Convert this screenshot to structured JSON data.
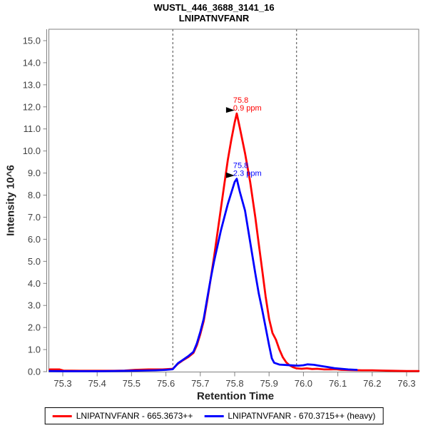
{
  "window": {
    "background": "#ffffff"
  },
  "chart_data": {
    "type": "line",
    "title": "WUSTL_446_3688_3141_16",
    "subtitle": "LNIPATNVFANR",
    "xlabel": "Retention Time",
    "ylabel": "Intensity 10^6",
    "xlim": [
      75.258,
      76.335
    ],
    "ylim": [
      0,
      15.52
    ],
    "x_ticks": [
      75.3,
      75.4,
      75.5,
      75.6,
      75.7,
      75.8,
      75.9,
      76.0,
      76.1,
      76.2,
      76.3
    ],
    "y_ticks": [
      0.0,
      1.0,
      2.0,
      3.0,
      4.0,
      5.0,
      6.0,
      7.0,
      8.0,
      9.0,
      10.0,
      11.0,
      12.0,
      13.0,
      14.0,
      15.0
    ],
    "grid": false,
    "legend_position": "bottom-center",
    "frame_color": "#808080",
    "tick_label_color": "#404040",
    "boundary_color": "#444444",
    "peak_boundaries": [
      75.62,
      75.98
    ],
    "series": [
      {
        "name": "LNIPATNVFANR - 665.3673++",
        "color": "#ff0000",
        "points": [
          [
            75.262,
            0.1
          ],
          [
            75.29,
            0.1
          ],
          [
            75.302,
            0.05
          ],
          [
            75.35,
            0.04
          ],
          [
            75.4,
            0.04
          ],
          [
            75.45,
            0.04
          ],
          [
            75.48,
            0.05
          ],
          [
            75.51,
            0.08
          ],
          [
            75.55,
            0.1
          ],
          [
            75.59,
            0.1
          ],
          [
            75.62,
            0.13
          ],
          [
            75.635,
            0.36
          ],
          [
            75.65,
            0.52
          ],
          [
            75.665,
            0.66
          ],
          [
            75.68,
            0.85
          ],
          [
            75.69,
            1.2
          ],
          [
            75.7,
            1.7
          ],
          [
            75.71,
            2.3
          ],
          [
            75.72,
            3.2
          ],
          [
            75.73,
            4.2
          ],
          [
            75.74,
            5.2
          ],
          [
            75.75,
            6.3
          ],
          [
            75.76,
            7.4
          ],
          [
            75.77,
            8.5
          ],
          [
            75.78,
            9.6
          ],
          [
            75.79,
            10.5
          ],
          [
            75.8,
            11.3
          ],
          [
            75.806,
            11.7
          ],
          [
            75.815,
            11.05
          ],
          [
            75.83,
            9.9
          ],
          [
            75.845,
            8.6
          ],
          [
            75.86,
            7.0
          ],
          [
            75.87,
            5.8
          ],
          [
            75.88,
            4.6
          ],
          [
            75.89,
            3.4
          ],
          [
            75.9,
            2.4
          ],
          [
            75.91,
            1.75
          ],
          [
            75.92,
            1.45
          ],
          [
            75.93,
            1.0
          ],
          [
            75.94,
            0.65
          ],
          [
            75.95,
            0.42
          ],
          [
            75.96,
            0.28
          ],
          [
            75.97,
            0.2
          ],
          [
            75.98,
            0.15
          ],
          [
            75.995,
            0.13
          ],
          [
            76.01,
            0.15
          ],
          [
            76.025,
            0.12
          ],
          [
            76.04,
            0.13
          ],
          [
            76.06,
            0.1
          ],
          [
            76.08,
            0.1
          ],
          [
            76.095,
            0.11
          ],
          [
            76.11,
            0.08
          ],
          [
            76.14,
            0.07
          ],
          [
            76.17,
            0.06
          ],
          [
            76.2,
            0.06
          ],
          [
            76.23,
            0.05
          ],
          [
            76.26,
            0.04
          ],
          [
            76.3,
            0.03
          ],
          [
            76.335,
            0.03
          ]
        ],
        "annotation": {
          "lines": [
            "75.8",
            "0.9 ppm"
          ],
          "x": 75.806,
          "y": 11.7
        }
      },
      {
        "name": "LNIPATNVFANR - 670.3715++ (heavy)",
        "color": "#0000ff",
        "points": [
          [
            75.262,
            0.03
          ],
          [
            75.31,
            0.02
          ],
          [
            75.36,
            0.02
          ],
          [
            75.41,
            0.02
          ],
          [
            75.45,
            0.03
          ],
          [
            75.49,
            0.04
          ],
          [
            75.53,
            0.05
          ],
          [
            75.57,
            0.06
          ],
          [
            75.6,
            0.08
          ],
          [
            75.62,
            0.11
          ],
          [
            75.635,
            0.38
          ],
          [
            75.65,
            0.54
          ],
          [
            75.665,
            0.7
          ],
          [
            75.68,
            0.9
          ],
          [
            75.69,
            1.28
          ],
          [
            75.7,
            1.8
          ],
          [
            75.71,
            2.4
          ],
          [
            75.72,
            3.3
          ],
          [
            75.73,
            4.2
          ],
          [
            75.74,
            5.0
          ],
          [
            75.75,
            5.7
          ],
          [
            75.76,
            6.4
          ],
          [
            75.77,
            7.0
          ],
          [
            75.78,
            7.6
          ],
          [
            75.79,
            8.1
          ],
          [
            75.8,
            8.6
          ],
          [
            75.806,
            8.74
          ],
          [
            75.815,
            8.15
          ],
          [
            75.83,
            7.3
          ],
          [
            75.84,
            6.35
          ],
          [
            75.85,
            5.4
          ],
          [
            75.86,
            4.45
          ],
          [
            75.87,
            3.55
          ],
          [
            75.88,
            2.8
          ],
          [
            75.89,
            2.0
          ],
          [
            75.9,
            1.2
          ],
          [
            75.908,
            0.6
          ],
          [
            75.915,
            0.4
          ],
          [
            75.93,
            0.32
          ],
          [
            75.95,
            0.3
          ],
          [
            75.97,
            0.28
          ],
          [
            75.985,
            0.27
          ],
          [
            76.0,
            0.29
          ],
          [
            76.012,
            0.33
          ],
          [
            76.03,
            0.31
          ],
          [
            76.05,
            0.26
          ],
          [
            76.07,
            0.21
          ],
          [
            76.09,
            0.16
          ],
          [
            76.11,
            0.13
          ],
          [
            76.13,
            0.1
          ],
          [
            76.155,
            0.08
          ]
        ],
        "annotation": {
          "lines": [
            "75.8",
            "2.3 ppm"
          ],
          "x": 75.806,
          "y": 8.74
        }
      }
    ]
  }
}
